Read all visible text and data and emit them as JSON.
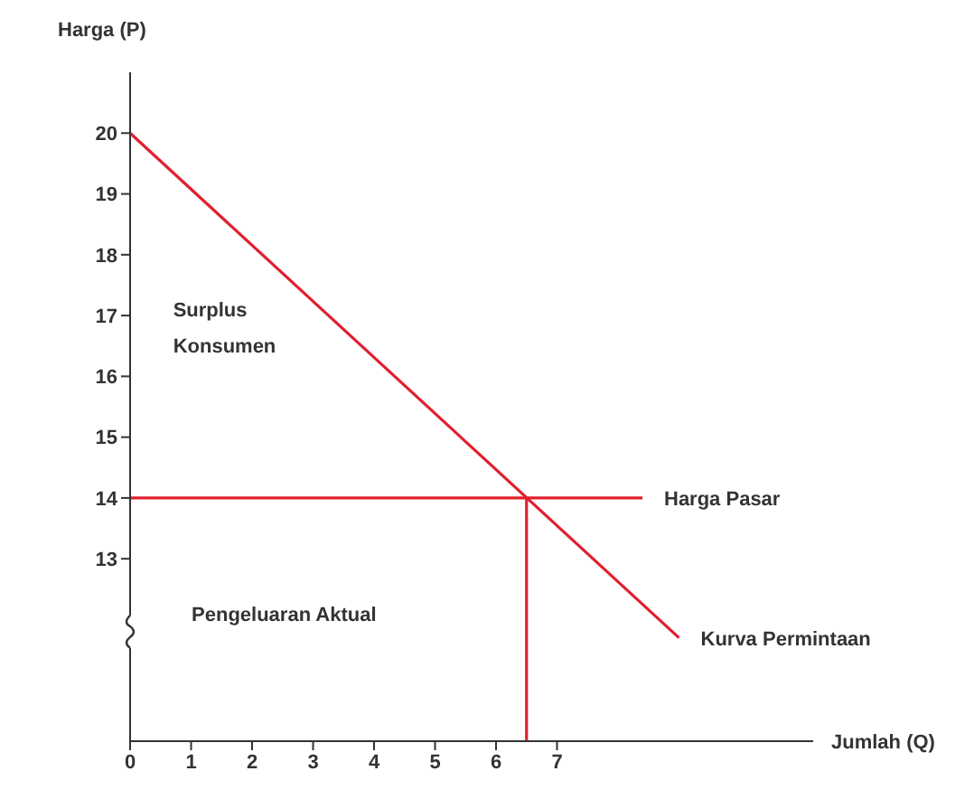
{
  "chart_data": {
    "type": "line",
    "xlabel": "Jumlah (Q)",
    "ylabel": "Harga (P)",
    "xlim": [
      0,
      11.2
    ],
    "ylim": [
      10,
      21
    ],
    "xticks": [
      0,
      1,
      2,
      3,
      4,
      5,
      6,
      7
    ],
    "yticks": [
      13,
      14,
      15,
      16,
      17,
      18,
      19,
      20
    ],
    "series": [
      {
        "name": "Harga Pasar",
        "color": "#e0202e",
        "x": [
          0,
          8.4
        ],
        "values": [
          14,
          14
        ]
      },
      {
        "name": "Kurva Permintaan",
        "color": "#e0202e",
        "x": [
          0,
          9
        ],
        "values": [
          20,
          11.7
        ]
      },
      {
        "color": "#e0202e",
        "x": [
          6.5,
          6.5
        ],
        "values": [
          10,
          14
        ]
      }
    ],
    "annotations": [
      "Surplus Konsumen",
      "Pengeluaran Aktual"
    ],
    "grid": false,
    "legend": false,
    "marker": "none",
    "line_style": "solid"
  }
}
